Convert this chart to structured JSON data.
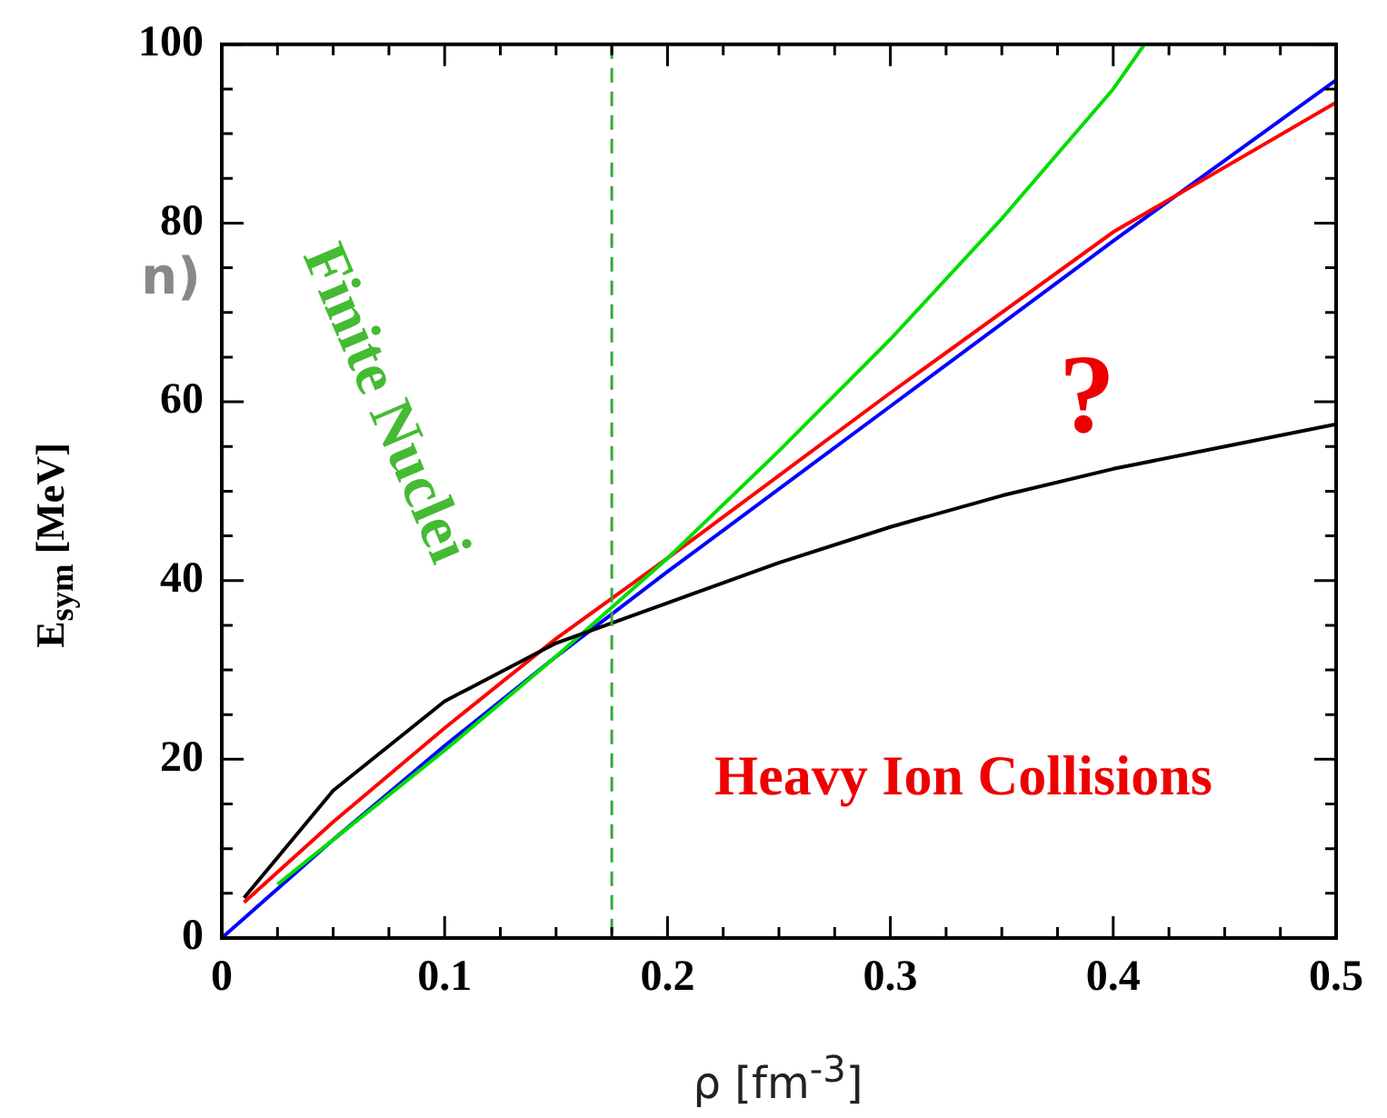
{
  "chart_data": {
    "type": "line",
    "xlabel": "ρ [fm$^{-3}$]",
    "ylabel": "E$_{sym}$ [MeV]",
    "xlim": [
      0,
      0.5
    ],
    "ylim": [
      0,
      100
    ],
    "xticks": [
      0,
      {
        "value": 0.025,
        "label": null
      },
      {
        "value": 0.05,
        "label": null
      },
      {
        "value": 0.075,
        "label": null
      },
      0.1,
      {
        "value": 0.125,
        "label": null
      },
      {
        "value": 0.15,
        "label": null
      },
      {
        "value": 0.175,
        "label": null
      },
      0.2,
      {
        "value": 0.225,
        "label": null
      },
      {
        "value": 0.25,
        "label": null
      },
      {
        "value": 0.275,
        "label": null
      },
      0.3,
      {
        "value": 0.325,
        "label": null
      },
      {
        "value": 0.35,
        "label": null
      },
      {
        "value": 0.375,
        "label": null
      },
      0.4,
      {
        "value": 0.425,
        "label": null
      },
      {
        "value": 0.45,
        "label": null
      },
      {
        "value": 0.475,
        "label": null
      },
      0.5
    ],
    "yticks": [
      0,
      {
        "value": 5,
        "label": null
      },
      {
        "value": 10,
        "label": null
      },
      {
        "value": 15,
        "label": null
      },
      20,
      {
        "value": 25,
        "label": null
      },
      {
        "value": 30,
        "label": null
      },
      {
        "value": 35,
        "label": null
      },
      40,
      {
        "value": 45,
        "label": null
      },
      {
        "value": 50,
        "label": null
      },
      {
        "value": 55,
        "label": null
      },
      60,
      {
        "value": 65,
        "label": null
      },
      {
        "value": 70,
        "label": null
      },
      {
        "value": 75,
        "label": null
      },
      80,
      {
        "value": 85,
        "label": null
      },
      {
        "value": 90,
        "label": null
      },
      {
        "value": 95,
        "label": null
      },
      100
    ],
    "series": [
      {
        "color": "#000000",
        "x": [
          0.01,
          0.05,
          0.1,
          0.15,
          0.2,
          0.25,
          0.3,
          0.35,
          0.4,
          0.45,
          0.5
        ],
        "values": [
          4.5,
          16.5,
          26.5,
          33,
          37.5,
          42,
          46,
          49.5,
          52.5,
          55,
          57.5
        ]
      },
      {
        "color": "#00dd00",
        "x": [
          0.025,
          0.05,
          0.1,
          0.15,
          0.2,
          0.25,
          0.3,
          0.35,
          0.4,
          0.414
        ],
        "values": [
          6,
          11,
          21,
          31.5,
          42.5,
          54.5,
          67,
          80.5,
          95,
          100
        ]
      },
      {
        "color": "#ff0000",
        "x": [
          0.01,
          0.05,
          0.1,
          0.15,
          0.2,
          0.3,
          0.4,
          0.5
        ],
        "values": [
          4,
          13,
          23.5,
          33.5,
          42.5,
          61,
          79,
          93.5
        ]
      },
      {
        "color": "#0000ff",
        "x": [
          0,
          0.05,
          0.1,
          0.15,
          0.2,
          0.3,
          0.4,
          0.5
        ],
        "values": [
          0,
          11,
          21.5,
          31.5,
          41,
          59.5,
          78,
          96
        ]
      }
    ],
    "ref_lines": [
      {
        "axis": "x",
        "value": 0.175,
        "color": "#33aa33",
        "line_style": "dashed"
      }
    ],
    "annotations": [
      "Finite Nuclei",
      "Heavy Ion Collisions",
      "?",
      "n)"
    ],
    "grid": false,
    "legend": false,
    "marker": "none",
    "line_style": "solid"
  }
}
